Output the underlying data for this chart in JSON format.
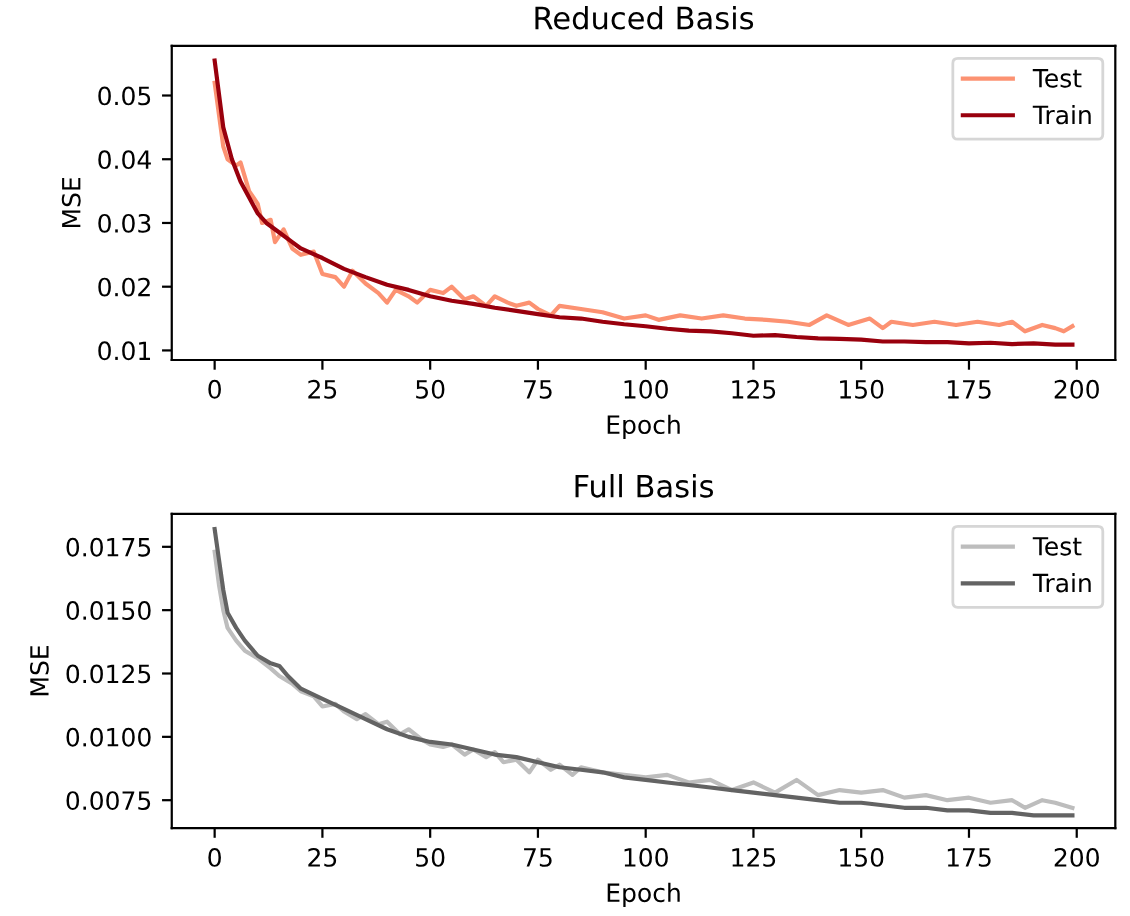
{
  "chart_data": [
    {
      "type": "line",
      "title": "Reduced Basis",
      "xlabel": "Epoch",
      "ylabel": "MSE",
      "xlim": [
        -9.95,
        208.95
      ],
      "ylim": [
        0.0085,
        0.0578
      ],
      "xticks": [
        0,
        25,
        50,
        75,
        100,
        125,
        150,
        175,
        200
      ],
      "yticks": [
        {
          "value": 0.01,
          "label": "0.01"
        },
        {
          "value": 0.02,
          "label": "0.02"
        },
        {
          "value": 0.03,
          "label": "0.03"
        },
        {
          "value": 0.04,
          "label": "0.04"
        },
        {
          "value": 0.05,
          "label": "0.05"
        }
      ],
      "grid": false,
      "legend": "top right",
      "line_style": "solid",
      "marker": "none",
      "series": [
        {
          "name": "Test",
          "color": "#fc9272",
          "x": [
            0,
            2,
            3,
            5,
            6,
            8,
            10,
            11,
            13,
            14,
            16,
            18,
            20,
            23,
            25,
            28,
            30,
            32,
            35,
            38,
            40,
            42,
            45,
            47,
            50,
            53,
            55,
            58,
            60,
            63,
            65,
            68,
            70,
            73,
            75,
            78,
            80,
            85,
            90,
            95,
            100,
            103,
            108,
            113,
            118,
            123,
            128,
            133,
            138,
            142,
            147,
            152,
            155,
            157,
            162,
            167,
            172,
            177,
            182,
            185,
            188,
            192,
            195,
            197,
            199
          ],
          "values": [
            0.052,
            0.042,
            0.04,
            0.039,
            0.0395,
            0.035,
            0.033,
            0.03,
            0.0305,
            0.027,
            0.029,
            0.026,
            0.025,
            0.0255,
            0.022,
            0.0215,
            0.02,
            0.0225,
            0.0205,
            0.019,
            0.0175,
            0.0195,
            0.0185,
            0.0175,
            0.0195,
            0.019,
            0.02,
            0.018,
            0.0185,
            0.017,
            0.0185,
            0.0175,
            0.017,
            0.0175,
            0.0165,
            0.0155,
            0.017,
            0.0165,
            0.016,
            0.015,
            0.0155,
            0.0148,
            0.0155,
            0.015,
            0.0155,
            0.015,
            0.0148,
            0.0145,
            0.014,
            0.0155,
            0.014,
            0.015,
            0.0135,
            0.0145,
            0.014,
            0.0145,
            0.014,
            0.0145,
            0.014,
            0.0145,
            0.013,
            0.014,
            0.0135,
            0.013,
            0.0138
          ]
        },
        {
          "name": "Train",
          "color": "#99000d",
          "x": [
            0,
            2,
            4,
            6,
            8,
            10,
            12,
            15,
            18,
            20,
            25,
            30,
            35,
            40,
            45,
            50,
            55,
            60,
            65,
            70,
            75,
            80,
            85,
            90,
            95,
            100,
            105,
            110,
            115,
            120,
            125,
            130,
            135,
            140,
            145,
            150,
            155,
            160,
            165,
            170,
            175,
            180,
            185,
            190,
            195,
            199
          ],
          "values": [
            0.0555,
            0.045,
            0.04,
            0.0365,
            0.034,
            0.0315,
            0.03,
            0.0285,
            0.027,
            0.026,
            0.0245,
            0.0228,
            0.0215,
            0.0203,
            0.0195,
            0.0185,
            0.0178,
            0.0173,
            0.0167,
            0.0162,
            0.0157,
            0.0152,
            0.015,
            0.0145,
            0.0141,
            0.0138,
            0.0134,
            0.0131,
            0.013,
            0.0127,
            0.0123,
            0.0124,
            0.0121,
            0.0119,
            0.0118,
            0.0117,
            0.0114,
            0.0114,
            0.0113,
            0.0113,
            0.0111,
            0.0112,
            0.011,
            0.0111,
            0.0109,
            0.0109
          ]
        }
      ]
    },
    {
      "type": "line",
      "title": "Full Basis",
      "xlabel": "Epoch",
      "ylabel": "MSE",
      "xlim": [
        -9.95,
        208.95
      ],
      "ylim": [
        0.0064,
        0.0188
      ],
      "xticks": [
        0,
        25,
        50,
        75,
        100,
        125,
        150,
        175,
        200
      ],
      "yticks": [
        {
          "value": 0.0075,
          "label": "0.0075"
        },
        {
          "value": 0.01,
          "label": "0.0100"
        },
        {
          "value": 0.0125,
          "label": "0.0125"
        },
        {
          "value": 0.015,
          "label": "0.0150"
        },
        {
          "value": 0.0175,
          "label": "0.0175"
        }
      ],
      "grid": false,
      "legend": "top right",
      "line_style": "solid",
      "marker": "none",
      "series": [
        {
          "name": "Test",
          "color": "#bdbdbd",
          "x": [
            0,
            1,
            2,
            3,
            5,
            7,
            10,
            13,
            15,
            18,
            20,
            23,
            25,
            28,
            30,
            33,
            35,
            38,
            40,
            43,
            45,
            48,
            50,
            53,
            55,
            58,
            60,
            63,
            65,
            67,
            70,
            73,
            75,
            78,
            80,
            83,
            85,
            90,
            95,
            100,
            105,
            110,
            115,
            120,
            125,
            130,
            135,
            140,
            145,
            150,
            155,
            160,
            165,
            170,
            175,
            180,
            185,
            188,
            192,
            195,
            199
          ],
          "values": [
            0.0173,
            0.016,
            0.015,
            0.0143,
            0.0138,
            0.0134,
            0.0131,
            0.0127,
            0.0124,
            0.0121,
            0.0118,
            0.0116,
            0.0112,
            0.0113,
            0.011,
            0.0107,
            0.0109,
            0.0105,
            0.0106,
            0.0101,
            0.0103,
            0.0099,
            0.0097,
            0.0096,
            0.0097,
            0.0093,
            0.0095,
            0.0092,
            0.0094,
            0.009,
            0.0091,
            0.0086,
            0.0091,
            0.0087,
            0.0089,
            0.0085,
            0.0088,
            0.0086,
            0.0085,
            0.0084,
            0.0085,
            0.0082,
            0.0083,
            0.0079,
            0.0082,
            0.0078,
            0.0083,
            0.0077,
            0.0079,
            0.0078,
            0.0079,
            0.0076,
            0.0077,
            0.0075,
            0.0076,
            0.0074,
            0.0075,
            0.0072,
            0.0075,
            0.0074,
            0.0072
          ]
        },
        {
          "name": "Train",
          "color": "#636363",
          "x": [
            0,
            1,
            2,
            3,
            5,
            7,
            10,
            13,
            15,
            17,
            20,
            25,
            30,
            35,
            40,
            45,
            50,
            55,
            60,
            65,
            70,
            75,
            80,
            85,
            90,
            95,
            100,
            105,
            110,
            115,
            120,
            125,
            130,
            135,
            140,
            145,
            150,
            155,
            160,
            165,
            170,
            175,
            180,
            185,
            190,
            195,
            199
          ],
          "values": [
            0.0182,
            0.017,
            0.0158,
            0.0149,
            0.0143,
            0.0138,
            0.0132,
            0.0129,
            0.0128,
            0.0124,
            0.0119,
            0.0115,
            0.0111,
            0.0107,
            0.0103,
            0.01,
            0.0098,
            0.0097,
            0.0095,
            0.0093,
            0.0092,
            0.009,
            0.0088,
            0.0087,
            0.0086,
            0.0084,
            0.0083,
            0.0082,
            0.0081,
            0.008,
            0.0079,
            0.0078,
            0.0077,
            0.0076,
            0.0075,
            0.0074,
            0.0074,
            0.0073,
            0.0072,
            0.0072,
            0.0071,
            0.0071,
            0.007,
            0.007,
            0.0069,
            0.0069,
            0.0069
          ]
        }
      ]
    }
  ]
}
